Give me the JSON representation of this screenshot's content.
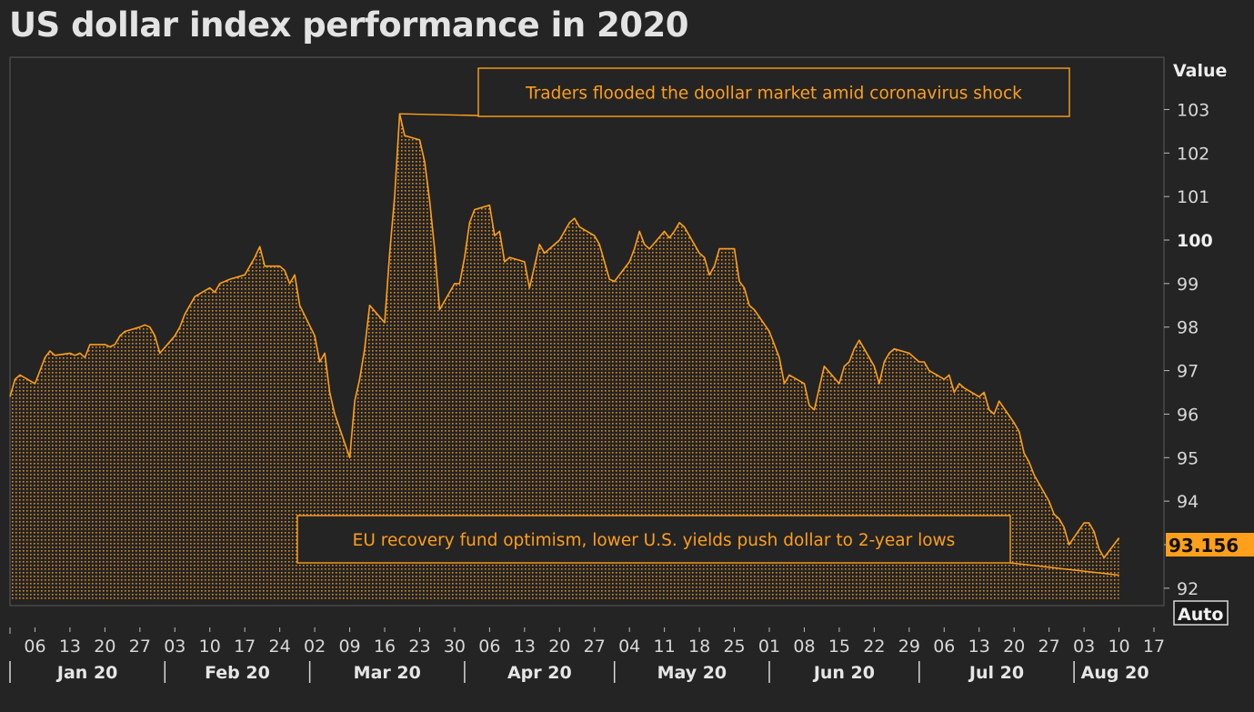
{
  "title": "US dollar index performance in 2020",
  "auto_label": "Auto",
  "colors": {
    "accent": "#ff9f1a",
    "background": "#242424",
    "plot_border": "#5a5a5a",
    "last_value_bg": "#ff9f1a"
  },
  "chart_data": {
    "type": "area",
    "title": "US dollar index performance in 2020",
    "xlabel": "",
    "ylabel": "Value",
    "ylim": [
      91.6,
      104.2
    ],
    "xlim": [
      "2020-01-01",
      "2020-08-19"
    ],
    "y_ticks": [
      92,
      93,
      94,
      95,
      96,
      97,
      98,
      99,
      100,
      101,
      102,
      103
    ],
    "y_tick_labels": [
      "92",
      "",
      "94",
      "95",
      "96",
      "97",
      "98",
      "99",
      "100",
      "101",
      "102",
      "103"
    ],
    "bold_y_tick": "100",
    "last_value": "93.156",
    "x_ticks": [
      {
        "date": "2020-01-06",
        "label": "06"
      },
      {
        "date": "2020-01-13",
        "label": "13"
      },
      {
        "date": "2020-01-20",
        "label": "20"
      },
      {
        "date": "2020-01-27",
        "label": "27"
      },
      {
        "date": "2020-02-03",
        "label": "03"
      },
      {
        "date": "2020-02-10",
        "label": "10"
      },
      {
        "date": "2020-02-17",
        "label": "17"
      },
      {
        "date": "2020-02-24",
        "label": "24"
      },
      {
        "date": "2020-03-02",
        "label": "02"
      },
      {
        "date": "2020-03-09",
        "label": "09"
      },
      {
        "date": "2020-03-16",
        "label": "16"
      },
      {
        "date": "2020-03-23",
        "label": "23"
      },
      {
        "date": "2020-03-30",
        "label": "30"
      },
      {
        "date": "2020-04-06",
        "label": "06"
      },
      {
        "date": "2020-04-13",
        "label": "13"
      },
      {
        "date": "2020-04-20",
        "label": "20"
      },
      {
        "date": "2020-04-27",
        "label": "27"
      },
      {
        "date": "2020-05-04",
        "label": "04"
      },
      {
        "date": "2020-05-11",
        "label": "11"
      },
      {
        "date": "2020-05-18",
        "label": "18"
      },
      {
        "date": "2020-05-25",
        "label": "25"
      },
      {
        "date": "2020-06-01",
        "label": "01"
      },
      {
        "date": "2020-06-08",
        "label": "08"
      },
      {
        "date": "2020-06-15",
        "label": "15"
      },
      {
        "date": "2020-06-22",
        "label": "22"
      },
      {
        "date": "2020-06-29",
        "label": "29"
      },
      {
        "date": "2020-07-06",
        "label": "06"
      },
      {
        "date": "2020-07-13",
        "label": "13"
      },
      {
        "date": "2020-07-20",
        "label": "20"
      },
      {
        "date": "2020-07-27",
        "label": "27"
      },
      {
        "date": "2020-08-03",
        "label": "03"
      },
      {
        "date": "2020-08-10",
        "label": "10"
      },
      {
        "date": "2020-08-17",
        "label": "17"
      }
    ],
    "months": [
      {
        "start": "2020-01-01",
        "label": "Jan 20"
      },
      {
        "start": "2020-02-01",
        "label": "Feb 20"
      },
      {
        "start": "2020-03-01",
        "label": "Mar 20"
      },
      {
        "start": "2020-04-01",
        "label": "Apr 20"
      },
      {
        "start": "2020-05-01",
        "label": "May 20"
      },
      {
        "start": "2020-06-01",
        "label": "Jun 20"
      },
      {
        "start": "2020-07-01",
        "label": "Jul 20"
      },
      {
        "start": "2020-08-01",
        "label": "Aug 20"
      }
    ],
    "series": [
      {
        "values": [
          [
            "2020-01-01",
            96.4
          ],
          [
            "2020-01-02",
            96.8
          ],
          [
            "2020-01-03",
            96.9
          ],
          [
            "2020-01-06",
            96.7
          ],
          [
            "2020-01-07",
            97.0
          ],
          [
            "2020-01-08",
            97.3
          ],
          [
            "2020-01-09",
            97.45
          ],
          [
            "2020-01-10",
            97.35
          ],
          [
            "2020-01-13",
            97.4
          ],
          [
            "2020-01-14",
            97.35
          ],
          [
            "2020-01-15",
            97.4
          ],
          [
            "2020-01-16",
            97.3
          ],
          [
            "2020-01-17",
            97.6
          ],
          [
            "2020-01-20",
            97.6
          ],
          [
            "2020-01-21",
            97.55
          ],
          [
            "2020-01-22",
            97.6
          ],
          [
            "2020-01-23",
            97.8
          ],
          [
            "2020-01-24",
            97.9
          ],
          [
            "2020-01-27",
            98.0
          ],
          [
            "2020-01-28",
            98.05
          ],
          [
            "2020-01-29",
            98.0
          ],
          [
            "2020-01-30",
            97.8
          ],
          [
            "2020-01-31",
            97.4
          ],
          [
            "2020-02-03",
            97.8
          ],
          [
            "2020-02-04",
            98.0
          ],
          [
            "2020-02-05",
            98.3
          ],
          [
            "2020-02-06",
            98.5
          ],
          [
            "2020-02-07",
            98.7
          ],
          [
            "2020-02-10",
            98.9
          ],
          [
            "2020-02-11",
            98.8
          ],
          [
            "2020-02-12",
            99.0
          ],
          [
            "2020-02-13",
            99.05
          ],
          [
            "2020-02-14",
            99.1
          ],
          [
            "2020-02-17",
            99.2
          ],
          [
            "2020-02-18",
            99.4
          ],
          [
            "2020-02-19",
            99.6
          ],
          [
            "2020-02-20",
            99.85
          ],
          [
            "2020-02-21",
            99.4
          ],
          [
            "2020-02-24",
            99.4
          ],
          [
            "2020-02-25",
            99.3
          ],
          [
            "2020-02-26",
            99.0
          ],
          [
            "2020-02-27",
            99.2
          ],
          [
            "2020-02-28",
            98.5
          ],
          [
            "2020-03-02",
            97.8
          ],
          [
            "2020-03-03",
            97.2
          ],
          [
            "2020-03-04",
            97.4
          ],
          [
            "2020-03-05",
            96.5
          ],
          [
            "2020-03-06",
            96.0
          ],
          [
            "2020-03-09",
            95.0
          ],
          [
            "2020-03-10",
            96.3
          ],
          [
            "2020-03-11",
            96.8
          ],
          [
            "2020-03-12",
            97.5
          ],
          [
            "2020-03-13",
            98.5
          ],
          [
            "2020-03-16",
            98.1
          ],
          [
            "2020-03-17",
            99.7
          ],
          [
            "2020-03-18",
            101.0
          ],
          [
            "2020-03-19",
            102.9
          ],
          [
            "2020-03-20",
            102.4
          ],
          [
            "2020-03-23",
            102.3
          ],
          [
            "2020-03-24",
            101.8
          ],
          [
            "2020-03-25",
            100.9
          ],
          [
            "2020-03-26",
            99.8
          ],
          [
            "2020-03-27",
            98.4
          ],
          [
            "2020-03-30",
            99.0
          ],
          [
            "2020-03-31",
            99.0
          ],
          [
            "2020-04-01",
            99.6
          ],
          [
            "2020-04-02",
            100.4
          ],
          [
            "2020-04-03",
            100.7
          ],
          [
            "2020-04-06",
            100.8
          ],
          [
            "2020-04-07",
            100.1
          ],
          [
            "2020-04-08",
            100.2
          ],
          [
            "2020-04-09",
            99.5
          ],
          [
            "2020-04-10",
            99.6
          ],
          [
            "2020-04-13",
            99.5
          ],
          [
            "2020-04-14",
            98.9
          ],
          [
            "2020-04-15",
            99.4
          ],
          [
            "2020-04-16",
            99.9
          ],
          [
            "2020-04-17",
            99.7
          ],
          [
            "2020-04-20",
            100.0
          ],
          [
            "2020-04-21",
            100.2
          ],
          [
            "2020-04-22",
            100.4
          ],
          [
            "2020-04-23",
            100.5
          ],
          [
            "2020-04-24",
            100.3
          ],
          [
            "2020-04-27",
            100.1
          ],
          [
            "2020-04-28",
            99.9
          ],
          [
            "2020-04-29",
            99.5
          ],
          [
            "2020-04-30",
            99.1
          ],
          [
            "2020-05-01",
            99.05
          ],
          [
            "2020-05-04",
            99.5
          ],
          [
            "2020-05-05",
            99.8
          ],
          [
            "2020-05-06",
            100.2
          ],
          [
            "2020-05-07",
            99.9
          ],
          [
            "2020-05-08",
            99.8
          ],
          [
            "2020-05-11",
            100.2
          ],
          [
            "2020-05-12",
            100.05
          ],
          [
            "2020-05-13",
            100.2
          ],
          [
            "2020-05-14",
            100.4
          ],
          [
            "2020-05-15",
            100.3
          ],
          [
            "2020-05-18",
            99.7
          ],
          [
            "2020-05-19",
            99.6
          ],
          [
            "2020-05-20",
            99.2
          ],
          [
            "2020-05-21",
            99.4
          ],
          [
            "2020-05-22",
            99.8
          ],
          [
            "2020-05-25",
            99.8
          ],
          [
            "2020-05-26",
            99.05
          ],
          [
            "2020-05-27",
            98.9
          ],
          [
            "2020-05-28",
            98.5
          ],
          [
            "2020-05-29",
            98.4
          ],
          [
            "2020-06-01",
            97.9
          ],
          [
            "2020-06-02",
            97.6
          ],
          [
            "2020-06-03",
            97.3
          ],
          [
            "2020-06-04",
            96.7
          ],
          [
            "2020-06-05",
            96.9
          ],
          [
            "2020-06-08",
            96.7
          ],
          [
            "2020-06-09",
            96.2
          ],
          [
            "2020-06-10",
            96.1
          ],
          [
            "2020-06-11",
            96.6
          ],
          [
            "2020-06-12",
            97.1
          ],
          [
            "2020-06-15",
            96.7
          ],
          [
            "2020-06-16",
            97.1
          ],
          [
            "2020-06-17",
            97.2
          ],
          [
            "2020-06-18",
            97.5
          ],
          [
            "2020-06-19",
            97.7
          ],
          [
            "2020-06-22",
            97.1
          ],
          [
            "2020-06-23",
            96.7
          ],
          [
            "2020-06-24",
            97.2
          ],
          [
            "2020-06-25",
            97.4
          ],
          [
            "2020-06-26",
            97.5
          ],
          [
            "2020-06-29",
            97.4
          ],
          [
            "2020-06-30",
            97.3
          ],
          [
            "2020-07-01",
            97.2
          ],
          [
            "2020-07-02",
            97.2
          ],
          [
            "2020-07-03",
            97.0
          ],
          [
            "2020-07-06",
            96.8
          ],
          [
            "2020-07-07",
            96.9
          ],
          [
            "2020-07-08",
            96.5
          ],
          [
            "2020-07-09",
            96.7
          ],
          [
            "2020-07-10",
            96.6
          ],
          [
            "2020-07-13",
            96.4
          ],
          [
            "2020-07-14",
            96.5
          ],
          [
            "2020-07-15",
            96.1
          ],
          [
            "2020-07-16",
            96.0
          ],
          [
            "2020-07-17",
            96.3
          ],
          [
            "2020-07-20",
            95.8
          ],
          [
            "2020-07-21",
            95.6
          ],
          [
            "2020-07-22",
            95.1
          ],
          [
            "2020-07-23",
            94.9
          ],
          [
            "2020-07-24",
            94.6
          ],
          [
            "2020-07-27",
            94.0
          ],
          [
            "2020-07-28",
            93.7
          ],
          [
            "2020-07-29",
            93.6
          ],
          [
            "2020-07-30",
            93.4
          ],
          [
            "2020-07-31",
            93.0
          ],
          [
            "2020-08-03",
            93.5
          ],
          [
            "2020-08-04",
            93.5
          ],
          [
            "2020-08-05",
            93.3
          ],
          [
            "2020-08-06",
            92.9
          ],
          [
            "2020-08-07",
            92.7
          ],
          [
            "2020-08-10",
            93.156
          ]
        ]
      }
    ],
    "annotations": [
      {
        "text": "Traders flooded the doollar market amid coronavirus shock",
        "point": [
          "2020-03-19",
          102.9
        ],
        "box_placement": "top-center"
      },
      {
        "text": "EU recovery fund optimism, lower U.S. yields push dollar to 2-year lows",
        "point": [
          "2020-08-10",
          92.3
        ],
        "box_placement": "bottom-right"
      }
    ]
  }
}
